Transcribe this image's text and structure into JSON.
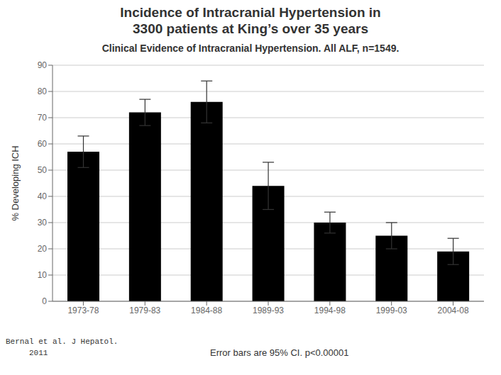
{
  "chart_data": {
    "type": "bar",
    "title": "Incidence of Intracranial Hypertension in\n3300 patients at King’s over 35 years",
    "subtitle": "Clinical Evidence of Intracranial Hypertension. All ALF, n=1549.",
    "categories": [
      "1973-78",
      "1979-83",
      "1984-88",
      "1989-93",
      "1994-98",
      "1999-03",
      "2004-08"
    ],
    "values": [
      57,
      72,
      76,
      44,
      30,
      25,
      19
    ],
    "errors": [
      6,
      5,
      8,
      9,
      4,
      5,
      5
    ],
    "y_label": "% Developing ICH",
    "ylim": [
      0,
      90
    ],
    "yticks": [
      0,
      10,
      20,
      30,
      40,
      50,
      60,
      70,
      80,
      90
    ],
    "grid": true,
    "annotations": [
      "Error bars are 95% CI. p<0.00001",
      "Bernal et al. J Hepatol.",
      "     2011"
    ]
  }
}
